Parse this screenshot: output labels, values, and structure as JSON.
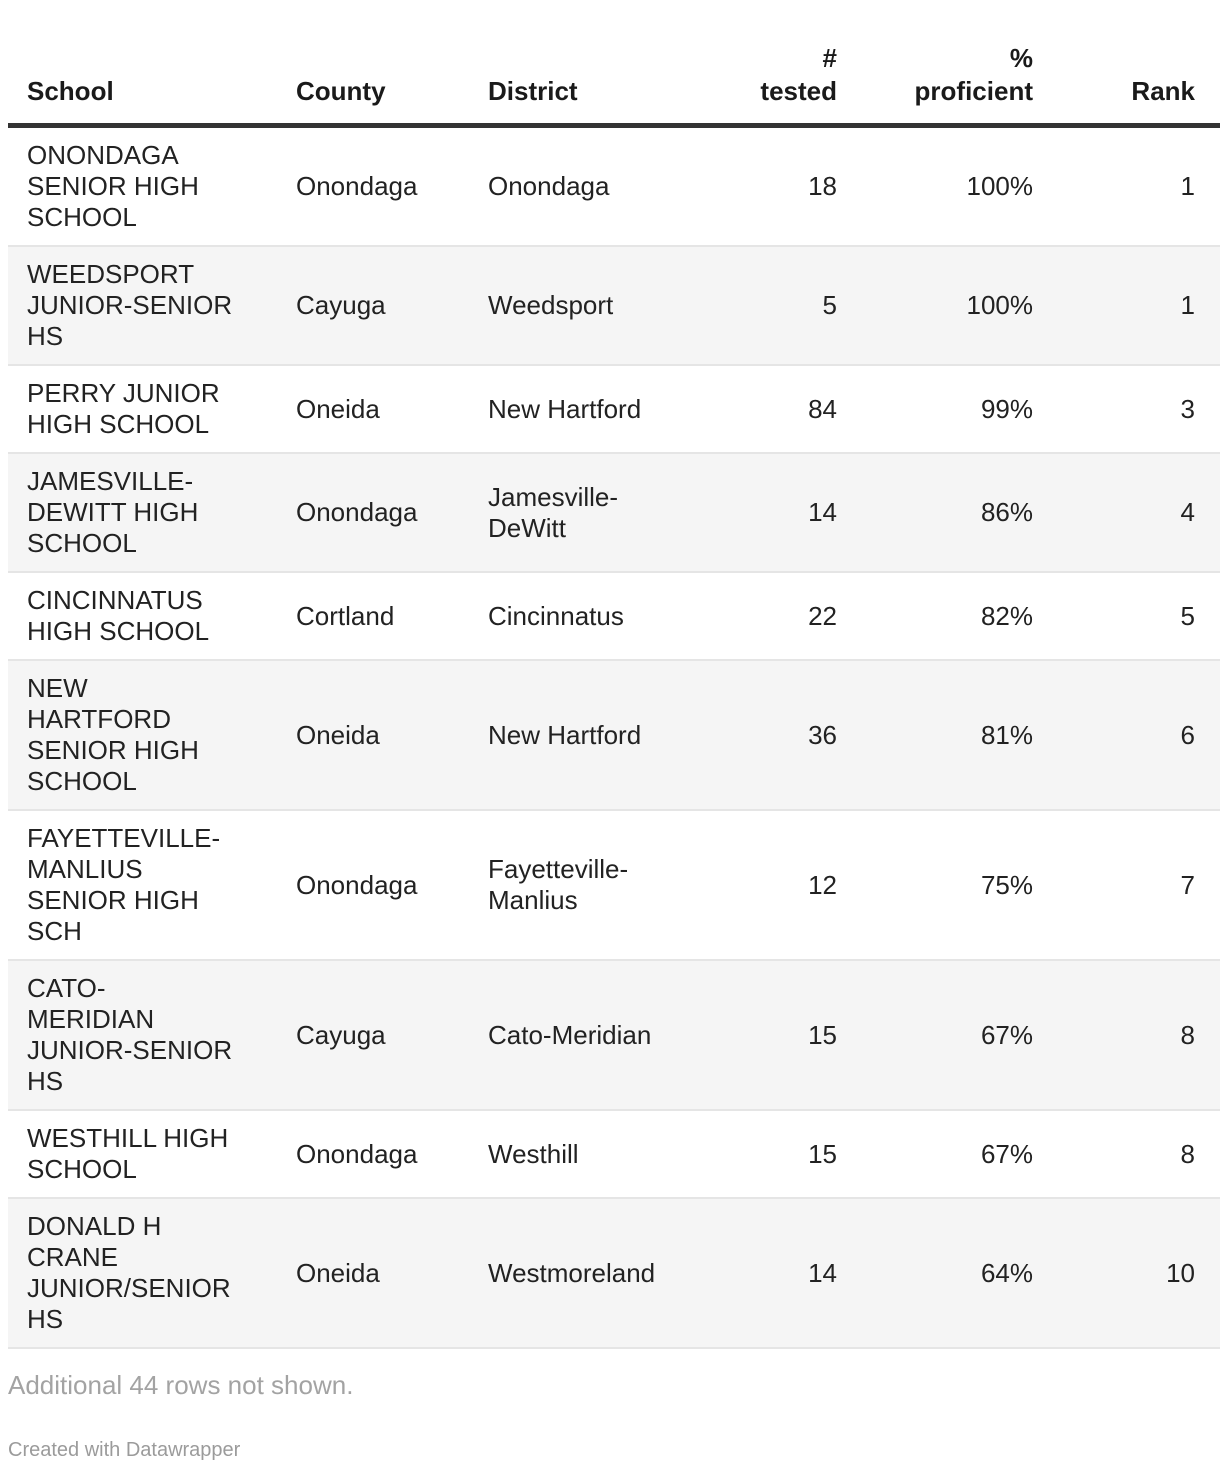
{
  "chart_data": {
    "type": "table",
    "columns": [
      "School",
      "County",
      "District",
      "# tested",
      "% proficient",
      "Rank"
    ],
    "rows": [
      {
        "school": "ONONDAGA SENIOR HIGH SCHOOL",
        "county": "Onondaga",
        "district": "Onondaga",
        "tested": 18,
        "proficient": "100%",
        "rank": 1
      },
      {
        "school": "WEEDSPORT JUNIOR-SENIOR HS",
        "county": "Cayuga",
        "district": "Weedsport",
        "tested": 5,
        "proficient": "100%",
        "rank": 1
      },
      {
        "school": "PERRY JUNIOR HIGH SCHOOL",
        "county": "Oneida",
        "district": "New Hartford",
        "tested": 84,
        "proficient": "99%",
        "rank": 3
      },
      {
        "school": "JAMESVILLE-DEWITT HIGH SCHOOL",
        "county": "Onondaga",
        "district": "Jamesville-DeWitt",
        "tested": 14,
        "proficient": "86%",
        "rank": 4
      },
      {
        "school": "CINCINNATUS HIGH SCHOOL",
        "county": "Cortland",
        "district": "Cincinnatus",
        "tested": 22,
        "proficient": "82%",
        "rank": 5
      },
      {
        "school": "NEW HARTFORD SENIOR HIGH SCHOOL",
        "county": "Oneida",
        "district": "New Hartford",
        "tested": 36,
        "proficient": "81%",
        "rank": 6
      },
      {
        "school": "FAYETTEVILLE-MANLIUS SENIOR HIGH SCH",
        "county": "Onondaga",
        "district": "Fayetteville-Manlius",
        "tested": 12,
        "proficient": "75%",
        "rank": 7
      },
      {
        "school": "CATO-MERIDIAN JUNIOR-SENIOR HS",
        "county": "Cayuga",
        "district": "Cato-Meridian",
        "tested": 15,
        "proficient": "67%",
        "rank": 8
      },
      {
        "school": "WESTHILL HIGH SCHOOL",
        "county": "Onondaga",
        "district": "Westhill",
        "tested": 15,
        "proficient": "67%",
        "rank": 8
      },
      {
        "school": "DONALD H CRANE JUNIOR/SENIOR HS",
        "county": "Oneida",
        "district": "Westmoreland",
        "tested": 14,
        "proficient": "64%",
        "rank": 10
      }
    ],
    "title": "",
    "legend_position": "none",
    "grid": "row-stripes"
  },
  "table": {
    "columns": [
      {
        "label": "School"
      },
      {
        "label": "County"
      },
      {
        "label": "District"
      },
      {
        "label": "#\ntested"
      },
      {
        "label": "%\nproficient"
      },
      {
        "label": "Rank"
      }
    ],
    "display_rows": [
      {
        "school": "ONONDAGA\nSENIOR HIGH\nSCHOOL",
        "county": "Onondaga",
        "district": "Onondaga",
        "tested": "18",
        "proficient": "100%",
        "rank": "1"
      },
      {
        "school": "WEEDSPORT\nJUNIOR-SENIOR\nHS",
        "county": "Cayuga",
        "district": "Weedsport",
        "tested": "5",
        "proficient": "100%",
        "rank": "1"
      },
      {
        "school": "PERRY JUNIOR\nHIGH SCHOOL",
        "county": "Oneida",
        "district": "New Hartford",
        "tested": "84",
        "proficient": "99%",
        "rank": "3"
      },
      {
        "school": "JAMESVILLE-\nDEWITT HIGH\nSCHOOL",
        "county": "Onondaga",
        "district": "Jamesville-\nDeWitt",
        "tested": "14",
        "proficient": "86%",
        "rank": "4"
      },
      {
        "school": "CINCINNATUS\nHIGH SCHOOL",
        "county": "Cortland",
        "district": "Cincinnatus",
        "tested": "22",
        "proficient": "82%",
        "rank": "5"
      },
      {
        "school": "NEW\nHARTFORD\nSENIOR HIGH\nSCHOOL",
        "county": "Oneida",
        "district": "New Hartford",
        "tested": "36",
        "proficient": "81%",
        "rank": "6"
      },
      {
        "school": "FAYETTEVILLE-\nMANLIUS\nSENIOR HIGH\nSCH",
        "county": "Onondaga",
        "district": "Fayetteville-\nManlius",
        "tested": "12",
        "proficient": "75%",
        "rank": "7"
      },
      {
        "school": "CATO-\nMERIDIAN\nJUNIOR-SENIOR\nHS",
        "county": "Cayuga",
        "district": "Cato-Meridian",
        "tested": "15",
        "proficient": "67%",
        "rank": "8"
      },
      {
        "school": "WESTHILL HIGH\nSCHOOL",
        "county": "Onondaga",
        "district": "Westhill",
        "tested": "15",
        "proficient": "67%",
        "rank": "8"
      },
      {
        "school": "DONALD H\nCRANE\nJUNIOR/SENIOR\nHS",
        "county": "Oneida",
        "district": "Westmoreland",
        "tested": "14",
        "proficient": "64%",
        "rank": "10"
      }
    ]
  },
  "footer": {
    "note": "Additional 44 rows not shown.",
    "attribution": "Created with Datawrapper"
  },
  "colors": {
    "stripe": "#f5f5f5",
    "header_rule": "#333333",
    "row_rule": "#e5e5e5",
    "text": "#222222",
    "muted_note": "#a3a3a3",
    "muted_attribution": "#9b9b9b"
  }
}
